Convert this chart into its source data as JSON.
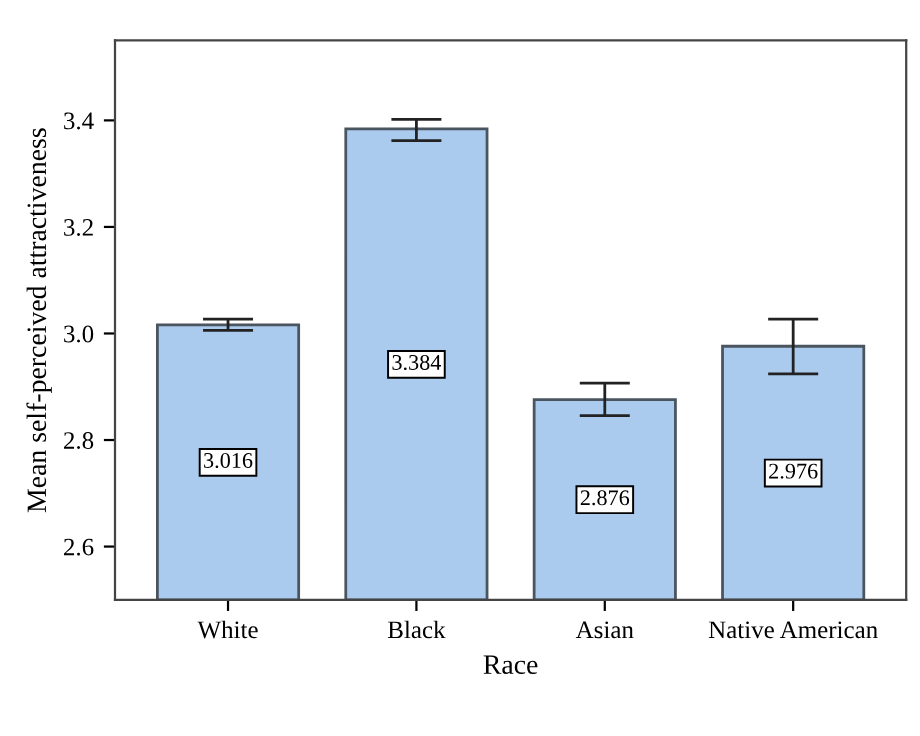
{
  "chart_data": {
    "type": "bar",
    "xlabel": "Race",
    "ylabel": "Mean self-perceived attractiveness",
    "categories": [
      "White",
      "Black",
      "Asian",
      "Native American"
    ],
    "values": [
      3.016,
      3.384,
      2.876,
      2.976
    ],
    "errors": [
      [
        3.006,
        3.027
      ],
      [
        3.362,
        3.402
      ],
      [
        2.846,
        2.907
      ],
      [
        2.924,
        3.027
      ]
    ],
    "color": "#aacbed",
    "data_labels": true,
    "grid": false,
    "legend": false,
    "ylim": [
      2.5,
      3.55
    ],
    "yticks": [
      2.6,
      2.8,
      {
        "value": 3,
        "label": "3.0"
      },
      3.2,
      3.4
    ]
  }
}
